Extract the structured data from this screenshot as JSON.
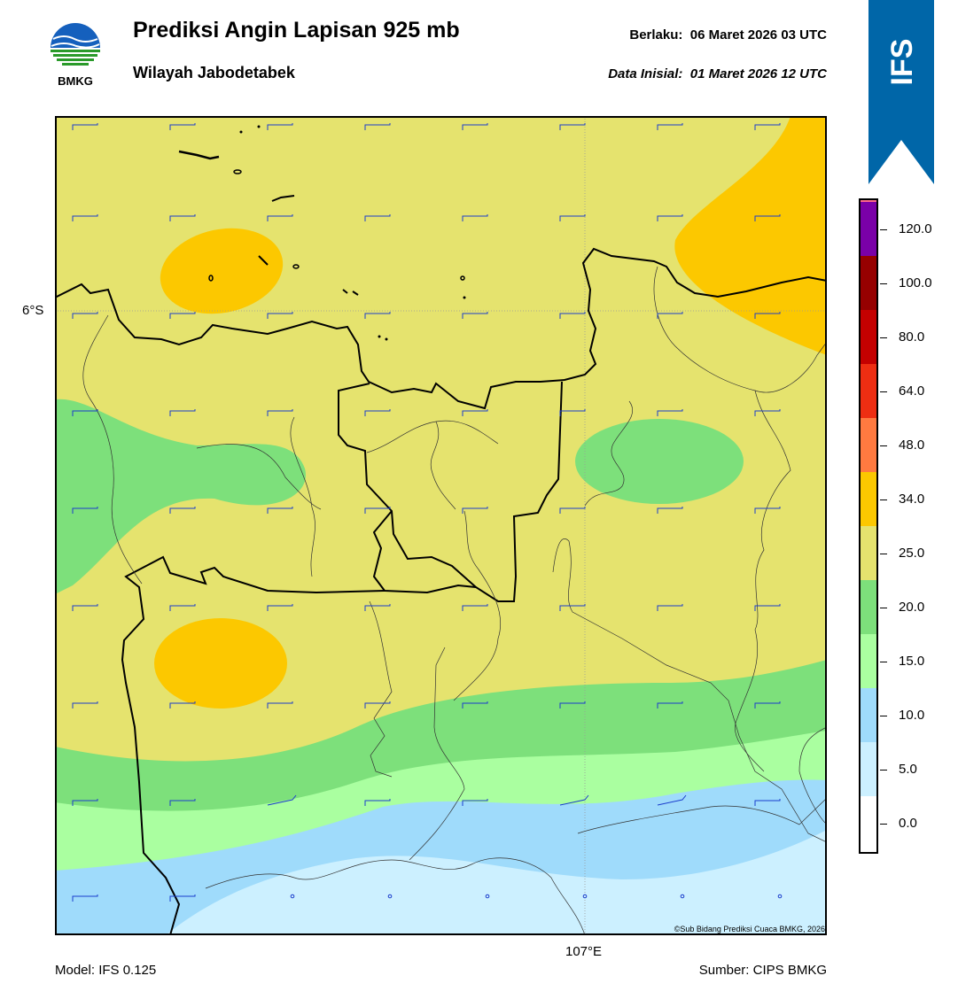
{
  "header": {
    "logo_text": "BMKG",
    "title": "Prediksi Angin Lapisan 925 mb",
    "subtitle": "Wilayah Jabodetabek",
    "valid_label": "Berlaku:",
    "valid_time": "06 Maret 2026 03 UTC",
    "init_label": "Data Inisial:",
    "init_time": "01 Maret 2026 12 UTC"
  },
  "badge": {
    "text": "IFS",
    "color": "#0066a8"
  },
  "map": {
    "lat_label": "6°S",
    "lon_label": "107°E",
    "copyright": "©Sub Bidang Prediksi Cuaca BMKG, 2026",
    "background_color": "#e5e36e",
    "barb_color": "#1a3ccc"
  },
  "colorbar": {
    "ticks": [
      "0.0",
      "5.0",
      "10.0",
      "15.0",
      "20.0",
      "25.0",
      "34.0",
      "48.0",
      "64.0",
      "80.0",
      "100.0",
      "120.0"
    ],
    "colors": [
      "#ffffff",
      "#ccf0ff",
      "#9fdbfb",
      "#aaffa0",
      "#7de07b",
      "#e5e36e",
      "#fcc800",
      "#ff7a40",
      "#ee2e12",
      "#c40000",
      "#960000",
      "#7a00a8",
      "#ff6a8a"
    ]
  },
  "footer": {
    "model": "Model: IFS 0.125",
    "source": "Sumber: CIPS BMKG"
  }
}
